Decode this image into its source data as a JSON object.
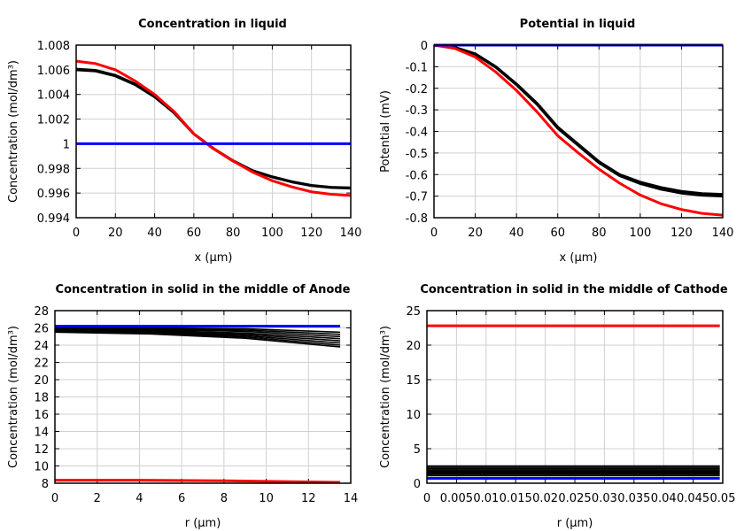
{
  "chart_data": [
    {
      "type": "line",
      "title": "Concentration in liquid",
      "xlabel": "x (µm)",
      "ylabel": "Concentration (mol/dm³)",
      "xlim": [
        0,
        140
      ],
      "ylim": [
        0.994,
        1.008
      ],
      "grid": true,
      "xticks": [
        "0",
        "20",
        "40",
        "60",
        "80",
        "100",
        "120",
        "140"
      ],
      "yticks": [
        "0.994",
        "0.996",
        "0.998",
        "1",
        "1.002",
        "1.004",
        "1.006",
        "1.008"
      ],
      "series": [
        {
          "color": "#000000",
          "x": [
            0,
            10,
            20,
            30,
            40,
            50,
            60,
            70,
            80,
            90,
            100,
            110,
            120,
            130,
            140
          ],
          "y": [
            1.006,
            1.0059,
            1.0055,
            1.0048,
            1.0038,
            1.0025,
            1.0008,
            0.9996,
            0.9986,
            0.9978,
            0.9973,
            0.9969,
            0.9966,
            0.99645,
            0.9964
          ]
        },
        {
          "color": "#000000",
          "x": [
            0,
            10,
            20,
            30,
            40,
            50,
            60,
            70,
            80,
            90,
            100,
            110,
            120,
            130,
            140
          ],
          "y": [
            1.00605,
            1.00595,
            1.00555,
            1.00485,
            1.00385,
            1.00252,
            1.0008,
            0.99962,
            0.99862,
            0.99782,
            0.99732,
            0.99692,
            0.99662,
            0.99647,
            0.99642
          ]
        },
        {
          "color": "#ff0000",
          "x": [
            0,
            10,
            20,
            30,
            40,
            50,
            60,
            70,
            80,
            90,
            100,
            110,
            120,
            130,
            140
          ],
          "y": [
            1.0067,
            1.0065,
            1.006,
            1.0051,
            1.004,
            1.0026,
            1.0008,
            0.9996,
            0.9986,
            0.9977,
            0.997,
            0.9965,
            0.9961,
            0.9959,
            0.9958
          ]
        },
        {
          "color": "#0000ff",
          "x": [
            0,
            140
          ],
          "y": [
            1.0,
            1.0
          ]
        }
      ]
    },
    {
      "type": "line",
      "title": "Potential in liquid",
      "xlabel": "x (µm)",
      "ylabel": "Potential (mV)",
      "xlim": [
        0,
        140
      ],
      "ylim": [
        -0.8,
        0
      ],
      "grid": true,
      "xticks": [
        "0",
        "20",
        "40",
        "60",
        "80",
        "100",
        "120",
        "140"
      ],
      "yticks": [
        "-0.8",
        "-0.7",
        "-0.6",
        "-0.5",
        "-0.4",
        "-0.3",
        "-0.2",
        "-0.1",
        "0"
      ],
      "series": [
        {
          "color": "#000000",
          "x": [
            0,
            10,
            20,
            30,
            40,
            50,
            60,
            70,
            80,
            90,
            100,
            110,
            120,
            130,
            140
          ],
          "y": [
            0,
            -0.01,
            -0.04,
            -0.1,
            -0.18,
            -0.27,
            -0.38,
            -0.46,
            -0.54,
            -0.6,
            -0.635,
            -0.66,
            -0.678,
            -0.688,
            -0.692
          ]
        },
        {
          "color": "#000000",
          "x": [
            0,
            10,
            20,
            30,
            40,
            50,
            60,
            70,
            80,
            90,
            100,
            110,
            120,
            130,
            140
          ],
          "y": [
            0,
            -0.011,
            -0.042,
            -0.103,
            -0.184,
            -0.275,
            -0.385,
            -0.465,
            -0.545,
            -0.605,
            -0.642,
            -0.668,
            -0.686,
            -0.696,
            -0.7
          ]
        },
        {
          "color": "#ff0000",
          "x": [
            0,
            10,
            20,
            30,
            40,
            50,
            60,
            70,
            80,
            90,
            100,
            110,
            120,
            130,
            140
          ],
          "y": [
            0,
            -0.015,
            -0.055,
            -0.125,
            -0.21,
            -0.31,
            -0.42,
            -0.5,
            -0.575,
            -0.64,
            -0.695,
            -0.735,
            -0.762,
            -0.78,
            -0.788
          ]
        },
        {
          "color": "#0000ff",
          "x": [
            0,
            140
          ],
          "y": [
            0,
            0
          ]
        }
      ]
    },
    {
      "type": "line",
      "title": "Concentration in solid in the middle of Anode",
      "xlabel": "r (µm)",
      "ylabel": "Concentration (mol/dm³)",
      "xlim": [
        0,
        14
      ],
      "ylim": [
        8,
        28
      ],
      "grid": true,
      "xticks": [
        "0",
        "2",
        "4",
        "6",
        "8",
        "10",
        "12",
        "14"
      ],
      "yticks": [
        "8",
        "10",
        "12",
        "14",
        "16",
        "18",
        "20",
        "22",
        "24",
        "26",
        "28"
      ],
      "series": [
        {
          "color": "#000000",
          "x": [
            0,
            4.5,
            9,
            13.5
          ],
          "y": [
            26.0,
            26.0,
            25.9,
            25.5
          ]
        },
        {
          "color": "#000000",
          "x": [
            0,
            4.5,
            9,
            13.5
          ],
          "y": [
            25.93,
            25.9,
            25.75,
            25.25
          ]
        },
        {
          "color": "#000000",
          "x": [
            0,
            4.5,
            9,
            13.5
          ],
          "y": [
            25.86,
            25.8,
            25.6,
            25.0
          ]
        },
        {
          "color": "#000000",
          "x": [
            0,
            4.5,
            9,
            13.5
          ],
          "y": [
            25.79,
            25.7,
            25.4,
            24.75
          ]
        },
        {
          "color": "#000000",
          "x": [
            0,
            4.5,
            9,
            13.5
          ],
          "y": [
            25.72,
            25.6,
            25.25,
            24.5
          ]
        },
        {
          "color": "#000000",
          "x": [
            0,
            4.5,
            9,
            13.5
          ],
          "y": [
            25.65,
            25.5,
            25.1,
            24.25
          ]
        },
        {
          "color": "#000000",
          "x": [
            0,
            4.5,
            9,
            13.5
          ],
          "y": [
            25.58,
            25.4,
            24.95,
            24.0
          ]
        },
        {
          "color": "#000000",
          "x": [
            0,
            4.5,
            9,
            13.5
          ],
          "y": [
            25.5,
            25.3,
            24.8,
            23.8
          ]
        },
        {
          "color": "#0000ff",
          "x": [
            0,
            13.5
          ],
          "y": [
            26.2,
            26.2
          ]
        },
        {
          "color": "#ff0000",
          "x": [
            0,
            4,
            8,
            13.5
          ],
          "y": [
            8.35,
            8.35,
            8.28,
            8.1
          ]
        }
      ]
    },
    {
      "type": "line",
      "title": "Concentration in solid in the middle of Cathode",
      "xlabel": "r (µm)",
      "ylabel": "Concentration (mol/dm³)",
      "xlim": [
        0,
        0.05
      ],
      "ylim": [
        0,
        25
      ],
      "grid": true,
      "xticks": [
        "0",
        "0.005",
        "0.01",
        "0.015",
        "0.02",
        "0.025",
        "0.03",
        "0.035",
        "0.04",
        "0.045",
        "0.05"
      ],
      "yticks": [
        "0",
        "5",
        "10",
        "15",
        "20",
        "25"
      ],
      "series": [
        {
          "color": "#ff0000",
          "x": [
            0,
            0.0495
          ],
          "y": [
            22.8,
            22.8
          ]
        },
        {
          "color": "#000000",
          "x": [
            0,
            0.0495
          ],
          "y": [
            2.5,
            2.5
          ]
        },
        {
          "color": "#000000",
          "x": [
            0,
            0.0495
          ],
          "y": [
            2.3,
            2.3
          ]
        },
        {
          "color": "#000000",
          "x": [
            0,
            0.0495
          ],
          "y": [
            2.1,
            2.1
          ]
        },
        {
          "color": "#000000",
          "x": [
            0,
            0.0495
          ],
          "y": [
            1.9,
            1.9
          ]
        },
        {
          "color": "#000000",
          "x": [
            0,
            0.0495
          ],
          "y": [
            1.7,
            1.7
          ]
        },
        {
          "color": "#000000",
          "x": [
            0,
            0.0495
          ],
          "y": [
            1.5,
            1.5
          ]
        },
        {
          "color": "#000000",
          "x": [
            0,
            0.0495
          ],
          "y": [
            1.3,
            1.3
          ]
        },
        {
          "color": "#000000",
          "x": [
            0,
            0.0495
          ],
          "y": [
            1.1,
            1.1
          ]
        },
        {
          "color": "#0000ff",
          "x": [
            0,
            0.0495
          ],
          "y": [
            0.7,
            0.7
          ]
        }
      ]
    }
  ]
}
